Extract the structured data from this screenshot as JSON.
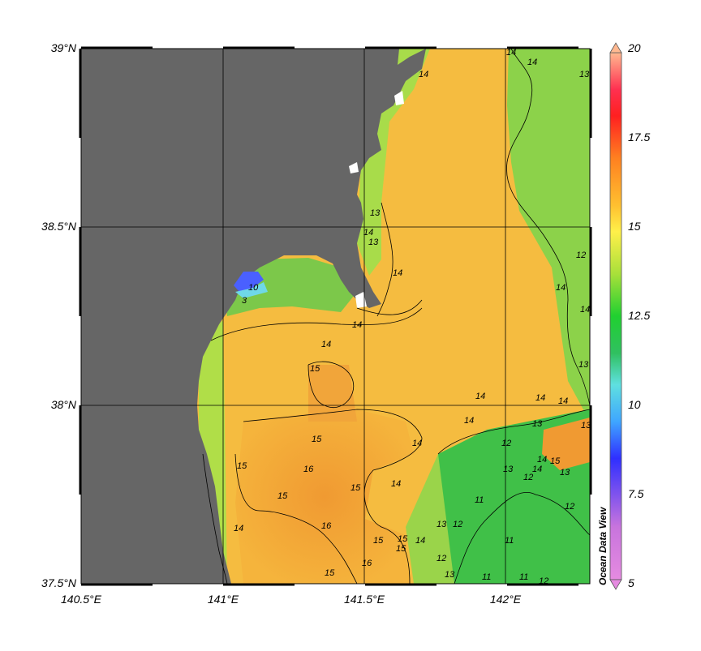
{
  "map": {
    "lat_ticks": [
      "39°N",
      "38.5°N",
      "38°N",
      "37.5°N"
    ],
    "lon_ticks": [
      "140.5°E",
      "141°E",
      "141.5°E",
      "142°E"
    ],
    "extent": {
      "lon": [
        140.5,
        142.3
      ],
      "lat": [
        37.5,
        39.0
      ]
    },
    "land_color": "#666666",
    "contour_labels": [
      "14",
      "14",
      "13",
      "13",
      "14",
      "12",
      "13",
      "14",
      "14",
      "13",
      "14",
      "14",
      "14",
      "14",
      "13",
      "15",
      "15",
      "15",
      "15",
      "16",
      "15",
      "16",
      "15",
      "16",
      "15",
      "14",
      "14",
      "14",
      "13",
      "12",
      "12",
      "13",
      "11",
      "11",
      "12",
      "14",
      "15",
      "13",
      "12",
      "11",
      "11",
      "12",
      "13",
      "12",
      "10",
      "3",
      "14",
      "14",
      "14",
      "14",
      "13",
      "14",
      "14",
      "15",
      "15"
    ]
  },
  "colorbar": {
    "labels": [
      "20",
      "17.5",
      "15",
      "12.5",
      "10",
      "7.5",
      "5"
    ],
    "min": 5,
    "max": 20,
    "colors": [
      "#e58be0",
      "#c874dd",
      "#2f2fff",
      "#3fa6ff",
      "#5fe0e0",
      "#30c060",
      "#20d030",
      "#a8e03a",
      "#fff04a",
      "#ffc030",
      "#ff8020",
      "#ff2020",
      "#ff3050",
      "#ffb890"
    ]
  },
  "watermark": "Ocean Data View"
}
